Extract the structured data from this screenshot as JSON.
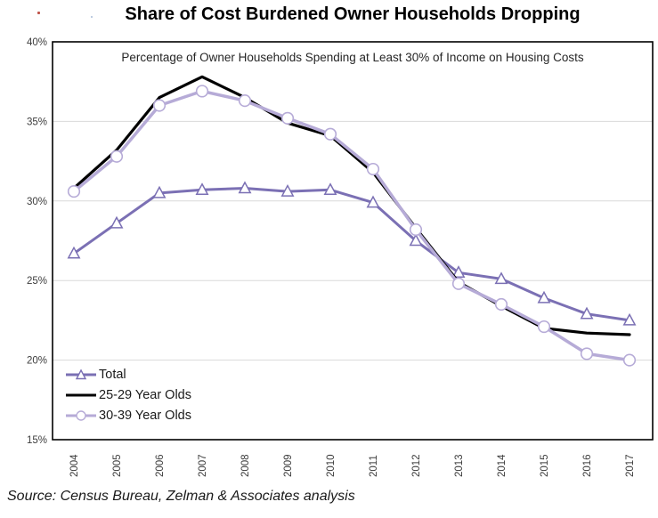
{
  "source": "Source: Census Bureau, Zelman & Associates analysis",
  "artifacts": {
    "dot1_color": "#c0544a",
    "dot2_color": "#a8bcd8"
  },
  "chart_data": {
    "type": "line",
    "title": "Share of Cost Burdened Owner Households Dropping",
    "subtitle": "Percentage of Owner Households Spending at Least 30% of Income on Housing Costs",
    "categories": [
      "2004",
      "2005",
      "2006",
      "2007",
      "2008",
      "2009",
      "2010",
      "2011",
      "2012",
      "2013",
      "2014",
      "2015",
      "2016",
      "2017"
    ],
    "series": [
      {
        "name": "Total",
        "color": "#7b70b4",
        "marker": "triangle",
        "line_width": 3,
        "values": [
          26.7,
          28.6,
          30.5,
          30.7,
          30.8,
          30.6,
          30.7,
          29.9,
          27.5,
          25.5,
          25.1,
          23.9,
          22.9,
          22.5
        ]
      },
      {
        "name": "25-29 Year Olds",
        "color": "#000000",
        "marker": "none",
        "line_width": 3.2,
        "values": [
          30.8,
          33.2,
          36.5,
          37.8,
          36.5,
          34.9,
          34.1,
          31.8,
          28.3,
          24.9,
          23.4,
          22.0,
          21.7,
          21.6
        ]
      },
      {
        "name": "30-39 Year Olds",
        "color": "#b6abd7",
        "marker": "circle",
        "line_width": 3.5,
        "values": [
          30.6,
          32.8,
          36.0,
          36.9,
          36.3,
          35.2,
          34.2,
          32.0,
          28.2,
          24.8,
          23.5,
          22.1,
          20.4,
          20.0
        ]
      }
    ],
    "ylim": [
      15,
      40
    ],
    "ytick_step": 5,
    "ytick_suffix": "%",
    "grid": "horizontal",
    "legend_position": "inside-bottom-left",
    "plot_border_color": "#000000",
    "gridline_color": "#d9d9d9",
    "tick_label_color": "#3d3d3d"
  }
}
